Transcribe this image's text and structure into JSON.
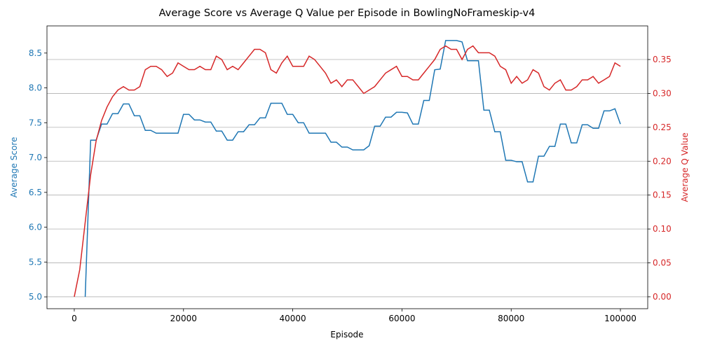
{
  "chart_data": {
    "type": "line",
    "title": "Average Score vs Average Q Value per Episode in BowlingNoFrameskip-v4",
    "x_label": "Episode",
    "y_label": "Average Score",
    "y2_label": "Average Q Value",
    "x": [
      0,
      1000,
      2000,
      3000,
      4000,
      5000,
      6000,
      7000,
      8000,
      9000,
      10000,
      11000,
      12000,
      13000,
      14000,
      15000,
      16000,
      17000,
      18000,
      19000,
      20000,
      21000,
      22000,
      23000,
      24000,
      25000,
      26000,
      27000,
      28000,
      29000,
      30000,
      31000,
      32000,
      33000,
      34000,
      35000,
      36000,
      37000,
      38000,
      39000,
      40000,
      41000,
      42000,
      43000,
      44000,
      45000,
      46000,
      47000,
      48000,
      49000,
      50000,
      51000,
      52000,
      53000,
      54000,
      55000,
      56000,
      57000,
      58000,
      59000,
      60000,
      61000,
      62000,
      63000,
      64000,
      65000,
      66000,
      67000,
      68000,
      69000,
      70000,
      71000,
      72000,
      73000,
      74000,
      75000,
      76000,
      77000,
      78000,
      79000,
      80000,
      81000,
      82000,
      83000,
      84000,
      85000,
      86000,
      87000,
      88000,
      89000,
      90000,
      91000,
      92000,
      93000,
      94000,
      95000,
      96000,
      97000,
      98000,
      99000,
      100000
    ],
    "series": [
      {
        "name": "Average Score",
        "color": "#1f77b4",
        "values": [
          null,
          null,
          5.0,
          7.25,
          7.25,
          7.48,
          7.48,
          7.63,
          7.63,
          7.77,
          7.77,
          7.6,
          7.6,
          7.39,
          7.39,
          7.35,
          7.35,
          7.35,
          7.35,
          7.35,
          7.62,
          7.62,
          7.54,
          7.54,
          7.51,
          7.51,
          7.38,
          7.38,
          7.25,
          7.25,
          7.37,
          7.37,
          7.47,
          7.47,
          7.57,
          7.57,
          7.78,
          7.78,
          7.78,
          7.62,
          7.62,
          7.5,
          7.5,
          7.35,
          7.35,
          7.35,
          7.35,
          7.22,
          7.22,
          7.15,
          7.15,
          7.11,
          7.11,
          7.11,
          7.17,
          7.45,
          7.45,
          7.58,
          7.58,
          7.65,
          7.65,
          7.64,
          7.48,
          7.48,
          7.82,
          7.82,
          8.26,
          8.27,
          8.68,
          8.68,
          8.68,
          8.66,
          8.39,
          8.39,
          8.39,
          7.68,
          7.68,
          7.37,
          7.37,
          6.96,
          6.96,
          6.94,
          6.94,
          6.65,
          6.65,
          7.02,
          7.02,
          7.16,
          7.16,
          7.48,
          7.48,
          7.21,
          7.21,
          7.47,
          7.47,
          7.42,
          7.42,
          7.67,
          7.67,
          7.7,
          7.48
        ]
      },
      {
        "name": "Average Q Value",
        "color": "#d62728",
        "axis": "y2",
        "values": [
          0.0,
          0.04,
          0.11,
          0.18,
          0.23,
          0.26,
          0.28,
          0.295,
          0.305,
          0.31,
          0.305,
          0.305,
          0.31,
          0.335,
          0.34,
          0.34,
          0.335,
          0.325,
          0.33,
          0.345,
          0.34,
          0.335,
          0.335,
          0.34,
          0.335,
          0.335,
          0.355,
          0.35,
          0.335,
          0.34,
          0.335,
          0.345,
          0.355,
          0.365,
          0.365,
          0.36,
          0.335,
          0.33,
          0.345,
          0.355,
          0.34,
          0.34,
          0.34,
          0.355,
          0.35,
          0.34,
          0.33,
          0.315,
          0.32,
          0.31,
          0.32,
          0.32,
          0.31,
          0.3,
          0.305,
          0.31,
          0.32,
          0.33,
          0.335,
          0.34,
          0.325,
          0.325,
          0.32,
          0.32,
          0.33,
          0.34,
          0.35,
          0.365,
          0.37,
          0.365,
          0.365,
          0.35,
          0.365,
          0.37,
          0.36,
          0.36,
          0.36,
          0.355,
          0.34,
          0.335,
          0.315,
          0.325,
          0.315,
          0.32,
          0.335,
          0.33,
          0.31,
          0.305,
          0.315,
          0.32,
          0.305,
          0.305,
          0.31,
          0.32,
          0.32,
          0.325,
          0.315,
          0.32,
          0.325,
          0.345,
          0.34
        ]
      }
    ],
    "xlim": [
      -5000,
      105000
    ],
    "xticks": [
      0,
      20000,
      40000,
      60000,
      80000,
      100000
    ],
    "ylim": [
      4.83,
      8.89
    ],
    "yticks": [
      {
        "value": 5,
        "label": "5.0"
      },
      5.5,
      {
        "value": 6,
        "label": "6.0"
      },
      6.5,
      {
        "value": 7,
        "label": "7.0"
      },
      7.5,
      {
        "value": 8,
        "label": "8.0"
      },
      8.5
    ],
    "y2lim": [
      -0.0176,
      0.3996
    ],
    "y2ticks": [
      {
        "value": 0,
        "label": "0.00"
      },
      0.05,
      {
        "value": 0.1,
        "label": "0.10"
      },
      0.15,
      {
        "value": 0.2,
        "label": "0.20"
      },
      0.25,
      {
        "value": 0.3,
        "label": "0.30"
      },
      0.35
    ],
    "grid": "y2"
  }
}
